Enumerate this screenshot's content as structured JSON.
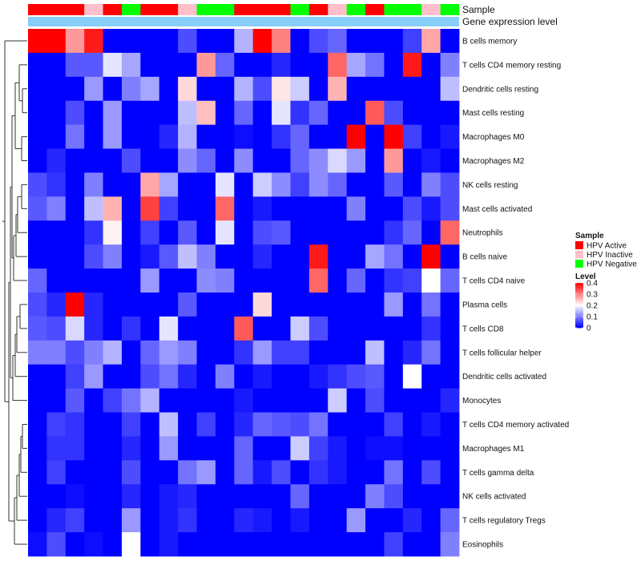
{
  "chart_data": {
    "type": "heatmap",
    "title": "",
    "annotation_tracks": [
      {
        "name": "Sample",
        "label": "Sample"
      },
      {
        "name": "Gene expression level",
        "label": "Gene expression level"
      }
    ],
    "sample_groups": [
      "Active",
      "Active",
      "Active",
      "Inactive",
      "Active",
      "Negative",
      "Active",
      "Active",
      "Inactive",
      "Negative",
      "Negative",
      "Active",
      "Active",
      "Active",
      "Negative",
      "Active",
      "Inactive",
      "Negative",
      "Active",
      "Negative",
      "Negative",
      "Inactive",
      "Negative"
    ],
    "columns": 23,
    "rows": [
      "B cells memory",
      "T cells CD4 memory resting",
      "Dendritic cells resting",
      "Mast cells resting",
      "Macrophages M0",
      "Macrophages M2",
      "NK cells resting",
      "Mast cells activated",
      "Neutrophils",
      "B cells naive",
      "T cells CD4 naive",
      "Plasma cells",
      "T cells CD8",
      "T cells follicular helper",
      "Dendritic cells activated",
      "Monocytes",
      "T cells CD4 memory activated",
      "Macrophages M1",
      "T cells gamma delta",
      "NK cells activated",
      "T cells regulatory  Tregs",
      "Eosinophils"
    ],
    "values": [
      [
        0.4,
        0.4,
        0.28,
        0.38,
        0.0,
        0.0,
        0.0,
        0.0,
        0.06,
        0.0,
        0.0,
        0.14,
        0.4,
        0.3,
        0.0,
        0.06,
        0.08,
        0.0,
        0.0,
        0.0,
        0.05,
        0.27,
        0.0
      ],
      [
        0.0,
        0.0,
        0.07,
        0.07,
        0.18,
        0.13,
        0.0,
        0.0,
        0.0,
        0.28,
        0.08,
        0.0,
        0.0,
        0.03,
        0.0,
        0.0,
        0.32,
        0.13,
        0.09,
        0.0,
        0.38,
        0.0,
        0.1
      ],
      [
        0.0,
        0.0,
        0.0,
        0.12,
        0.0,
        0.1,
        0.13,
        0.0,
        0.23,
        0.0,
        0.0,
        0.14,
        0.06,
        0.22,
        0.16,
        0.0,
        0.26,
        0.0,
        0.0,
        0.0,
        0.0,
        0.0,
        0.15
      ],
      [
        0.0,
        0.0,
        0.06,
        0.0,
        0.12,
        0.0,
        0.0,
        0.0,
        0.15,
        0.25,
        0.0,
        0.08,
        0.0,
        0.18,
        0.04,
        0.08,
        0.0,
        0.0,
        0.33,
        0.06,
        0.0,
        0.0,
        0.0
      ],
      [
        0.0,
        0.0,
        0.09,
        0.0,
        0.12,
        0.0,
        0.0,
        0.03,
        0.14,
        0.0,
        0.0,
        0.01,
        0.0,
        0.04,
        0.08,
        0.0,
        0.0,
        0.4,
        0.0,
        0.4,
        0.05,
        0.0,
        0.02
      ],
      [
        0.0,
        0.03,
        0.0,
        0.0,
        0.0,
        0.06,
        0.0,
        0.0,
        0.11,
        0.08,
        0.0,
        0.11,
        0.0,
        0.0,
        0.08,
        0.11,
        0.17,
        0.12,
        0.0,
        0.28,
        0.0,
        0.02,
        0.0
      ],
      [
        0.06,
        0.04,
        0.0,
        0.1,
        0.0,
        0.0,
        0.27,
        0.13,
        0.0,
        0.0,
        0.18,
        0.0,
        0.16,
        0.11,
        0.05,
        0.11,
        0.08,
        0.0,
        0.0,
        0.07,
        0.0,
        0.1,
        0.06
      ],
      [
        0.07,
        0.1,
        0.0,
        0.15,
        0.26,
        0.0,
        0.35,
        0.05,
        0.0,
        0.0,
        0.32,
        0.0,
        0.02,
        0.0,
        0.0,
        0.0,
        0.0,
        0.1,
        0.0,
        0.0,
        0.06,
        0.02,
        0.06
      ],
      [
        0.0,
        0.0,
        0.0,
        0.04,
        0.21,
        0.0,
        0.05,
        0.0,
        0.07,
        0.0,
        0.18,
        0.0,
        0.06,
        0.07,
        0.0,
        0.0,
        0.0,
        0.0,
        0.0,
        0.04,
        0.08,
        0.0,
        0.32
      ],
      [
        0.0,
        0.0,
        0.0,
        0.06,
        0.1,
        0.0,
        0.02,
        0.07,
        0.15,
        0.1,
        0.0,
        0.0,
        0.03,
        0.0,
        0.0,
        0.38,
        0.0,
        0.0,
        0.13,
        0.09,
        0.0,
        0.4,
        0.0
      ],
      [
        0.08,
        0.0,
        0.0,
        0.0,
        0.0,
        0.0,
        0.12,
        0.0,
        0.0,
        0.11,
        0.1,
        0.0,
        0.0,
        0.0,
        0.0,
        0.32,
        0.0,
        0.08,
        0.0,
        0.04,
        0.05,
        0.2,
        0.08
      ],
      [
        0.06,
        0.03,
        0.4,
        0.03,
        0.0,
        0.0,
        0.0,
        0.0,
        0.07,
        0.0,
        0.0,
        0.0,
        0.23,
        0.0,
        0.0,
        0.0,
        0.0,
        0.0,
        0.0,
        0.12,
        0.0,
        0.09,
        0.0
      ],
      [
        0.07,
        0.06,
        0.17,
        0.03,
        0.0,
        0.04,
        0.0,
        0.18,
        0.0,
        0.0,
        0.0,
        0.33,
        0.0,
        0.0,
        0.16,
        0.06,
        0.0,
        0.0,
        0.0,
        0.0,
        0.0,
        0.04,
        0.0
      ],
      [
        0.1,
        0.1,
        0.06,
        0.1,
        0.14,
        0.0,
        0.08,
        0.12,
        0.1,
        0.0,
        0.0,
        0.04,
        0.12,
        0.05,
        0.05,
        0.0,
        0.0,
        0.0,
        0.15,
        0.0,
        0.03,
        0.09,
        0.0
      ],
      [
        0.0,
        0.0,
        0.05,
        0.12,
        0.0,
        0.0,
        0.06,
        0.09,
        0.03,
        0.0,
        0.1,
        0.0,
        0.02,
        0.0,
        0.0,
        0.02,
        0.04,
        0.06,
        0.07,
        0.0,
        0.2,
        0.0,
        0.0
      ],
      [
        0.0,
        0.0,
        0.07,
        0.0,
        0.05,
        0.09,
        0.14,
        0.0,
        0.0,
        0.0,
        0.0,
        0.02,
        0.0,
        0.0,
        0.0,
        0.0,
        0.16,
        0.0,
        0.06,
        0.0,
        0.0,
        0.0,
        0.03
      ],
      [
        0.0,
        0.05,
        0.04,
        0.0,
        0.0,
        0.05,
        0.0,
        0.15,
        0.0,
        0.05,
        0.0,
        0.03,
        0.08,
        0.07,
        0.06,
        0.09,
        0.0,
        0.0,
        0.0,
        0.05,
        0.0,
        0.02,
        0.0
      ],
      [
        0.0,
        0.04,
        0.04,
        0.0,
        0.0,
        0.03,
        0.0,
        0.12,
        0.0,
        0.0,
        0.0,
        0.08,
        0.0,
        0.0,
        0.16,
        0.05,
        0.02,
        0.0,
        0.01,
        0.01,
        0.0,
        0.0,
        0.0
      ],
      [
        0.0,
        0.05,
        0.0,
        0.0,
        0.0,
        0.06,
        0.0,
        0.0,
        0.09,
        0.12,
        0.0,
        0.08,
        0.02,
        0.06,
        0.0,
        0.04,
        0.02,
        0.0,
        0.0,
        0.09,
        0.0,
        0.06,
        0.0
      ],
      [
        0.0,
        0.0,
        0.01,
        0.0,
        0.0,
        0.03,
        0.0,
        0.02,
        0.03,
        0.0,
        0.0,
        0.0,
        0.0,
        0.0,
        0.08,
        0.0,
        0.0,
        0.0,
        0.1,
        0.06,
        0.0,
        0.0,
        0.0
      ],
      [
        0.0,
        0.03,
        0.05,
        0.0,
        0.0,
        0.12,
        0.0,
        0.02,
        0.04,
        0.0,
        0.0,
        0.03,
        0.02,
        0.0,
        0.02,
        0.0,
        0.0,
        0.12,
        0.0,
        0.0,
        0.03,
        0.0,
        0.08
      ],
      [
        0.01,
        0.06,
        0.0,
        0.01,
        0.0,
        0.2,
        0.0,
        0.02,
        0.0,
        0.0,
        0.0,
        0.0,
        0.0,
        0.0,
        0.0,
        0.0,
        0.0,
        0.0,
        0.0,
        0.05,
        0.0,
        0.0,
        0.1
      ]
    ],
    "legend_sample": {
      "title": "Sample",
      "items": [
        {
          "key": "Active",
          "label": "HPV Active",
          "color": "#ff0000"
        },
        {
          "key": "Inactive",
          "label": "HPV Inactive",
          "color": "#ffc0cb"
        },
        {
          "key": "Negative",
          "label": "HPV Negative",
          "color": "#00ff00"
        }
      ]
    },
    "legend_level": {
      "title": "Level",
      "min": 0,
      "max": 0.4,
      "ticks": [
        {
          "value": 0.4,
          "label": "0.4"
        },
        {
          "value": 0.3,
          "label": "0.3"
        },
        {
          "value": 0.2,
          "label": "0.2"
        },
        {
          "value": 0.1,
          "label": "0.1"
        },
        {
          "value": 0.0,
          "label": "0"
        }
      ],
      "colors": {
        "low": "#0000ff",
        "mid": "#ffffff",
        "high": "#ff0000"
      }
    },
    "expression_bar_color": "#87cefa"
  }
}
